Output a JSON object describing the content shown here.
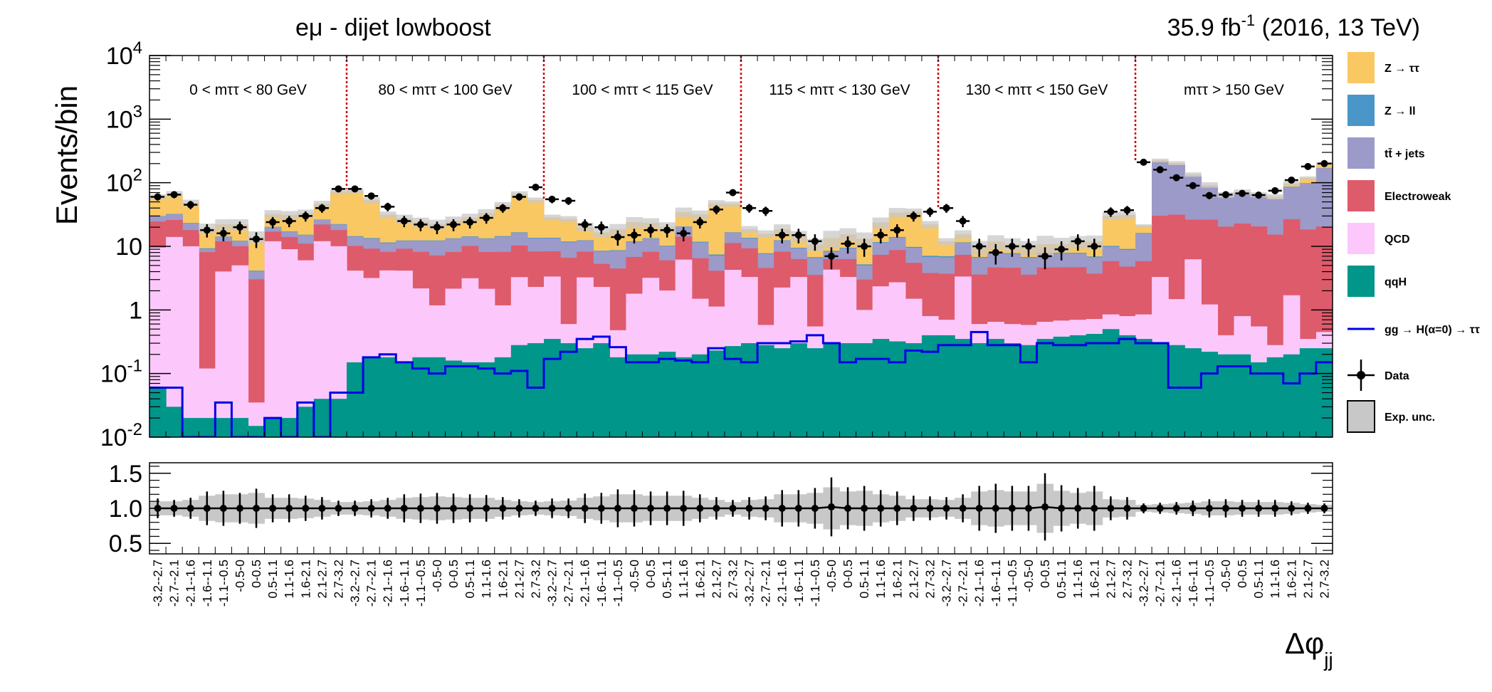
{
  "header": {
    "title": "eμ - dijet lowboost",
    "lumi_value": "35.9 fb",
    "lumi_exp": "-1",
    "lumi_rest": " (2016, 13 TeV)"
  },
  "colors": {
    "ztt": "#f9c863",
    "zll": "#4a96c8",
    "ttbar": "#9c9ac9",
    "ewk": "#de5b6b",
    "qcd": "#fcc8fc",
    "qqh": "#00968a",
    "signal": "#0000e6",
    "data": "#000000",
    "unc": "#c8c8c8",
    "divider": "#cc0000"
  },
  "chart_data": [
    {
      "type": "bar",
      "stacked": true,
      "title": "eμ - dijet lowboost",
      "ylabel": "Events/bin",
      "xlabel": "Δφjj",
      "yscale": "log",
      "ylim": [
        0.01,
        10000
      ],
      "y_ticks": [
        "10^-2",
        "10^-1",
        "1",
        "10",
        "10^2",
        "10^3",
        "10^4"
      ],
      "legend_position": "right",
      "regions": [
        {
          "label": "0 < mττ < 80 GeV"
        },
        {
          "label": "80 < mττ < 100 GeV"
        },
        {
          "label": "100 < mττ < 115 GeV"
        },
        {
          "label": "115 < mττ < 130 GeV"
        },
        {
          "label": "130 < mττ < 150 GeV"
        },
        {
          "label": "mττ > 150 GeV"
        }
      ],
      "categories": [
        "-3.2--2.7",
        "-2.7--2.1",
        "-2.1--1.6",
        "-1.6--1.1",
        "-1.1--0.5",
        "-0.5-0",
        "0-0.5",
        "0.5-1.1",
        "1.1-1.6",
        "1.6-2.1",
        "2.1-2.7",
        "2.7-3.2",
        "-3.2--2.7",
        "-2.7--2.1",
        "-2.1--1.6",
        "-1.6--1.1",
        "-1.1--0.5",
        "-0.5-0",
        "0-0.5",
        "0.5-1.1",
        "1.1-1.6",
        "1.6-2.1",
        "2.1-2.7",
        "2.7-3.2",
        "-3.2--2.7",
        "-2.7--2.1",
        "-2.1--1.6",
        "-1.6--1.1",
        "-1.1--0.5",
        "-0.5-0",
        "0-0.5",
        "0.5-1.1",
        "1.1-1.6",
        "1.6-2.1",
        "2.1-2.7",
        "2.7-3.2",
        "-3.2--2.7",
        "-2.7--2.1",
        "-2.1--1.6",
        "-1.6--1.1",
        "-1.1--0.5",
        "-0.5-0",
        "0-0.5",
        "0.5-1.1",
        "1.1-1.6",
        "1.6-2.1",
        "2.1-2.7",
        "2.7-3.2",
        "-3.2--2.7",
        "-2.7--2.1",
        "-2.1--1.6",
        "-1.6--1.1",
        "-1.1--0.5",
        "-0.5-0",
        "0-0.5",
        "0.5-1.1",
        "1.1-1.6",
        "1.6-2.1",
        "2.1-2.7",
        "2.7-3.2",
        "-3.2--2.7",
        "-2.7--2.1",
        "-2.1--1.6",
        "-1.6--1.1",
        "-1.1--0.5",
        "-0.5-0",
        "0-0.5",
        "0.5-1.1",
        "1.1-1.6",
        "1.6-2.1",
        "2.1-2.7",
        "2.7-3.2"
      ],
      "series": [
        {
          "name": "qqH",
          "key": "qqh",
          "values": [
            0.06,
            0.03,
            0.02,
            0.02,
            0.02,
            0.02,
            0.015,
            0.02,
            0.02,
            0.03,
            0.04,
            0.04,
            0.15,
            0.18,
            0.18,
            0.15,
            0.18,
            0.18,
            0.16,
            0.15,
            0.15,
            0.18,
            0.28,
            0.3,
            0.35,
            0.3,
            0.25,
            0.3,
            0.18,
            0.2,
            0.2,
            0.22,
            0.18,
            0.2,
            0.23,
            0.27,
            0.3,
            0.28,
            0.25,
            0.3,
            0.25,
            0.3,
            0.3,
            0.3,
            0.35,
            0.32,
            0.3,
            0.4,
            0.4,
            0.35,
            0.3,
            0.35,
            0.3,
            0.28,
            0.35,
            0.38,
            0.4,
            0.42,
            0.5,
            0.4,
            0.35,
            0.3,
            0.28,
            0.25,
            0.22,
            0.2,
            0.2,
            0.15,
            0.18,
            0.2,
            0.25,
            0.25
          ]
        },
        {
          "name": "QCD",
          "key": "qcd",
          "values": [
            9.5,
            14,
            10,
            0.1,
            4,
            5,
            0.02,
            12,
            9,
            6,
            12,
            10,
            4,
            3,
            4,
            4,
            2,
            1,
            2,
            3,
            2,
            1,
            3,
            2,
            3,
            0.3,
            3,
            2,
            0.3,
            1.6,
            3,
            1.8,
            6,
            1.3,
            0.9,
            4,
            3,
            0.3,
            2,
            3,
            0.3,
            4,
            3,
            0.7,
            2,
            2.4,
            1.2,
            0.4,
            0.3,
            3,
            0.3,
            0.3,
            0.3,
            0.3,
            0.3,
            0.3,
            0.3,
            0.3,
            0.35,
            0.4,
            0.5,
            3,
            1.2,
            6,
            1,
            0.2,
            0.6,
            0.4,
            0.1,
            1.5,
            0.1,
            0.2
          ]
        },
        {
          "name": "Electroweak",
          "key": "ewk",
          "values": [
            15,
            12,
            8,
            8,
            8,
            5,
            3,
            5,
            5,
            5,
            10,
            8,
            6,
            6,
            4,
            5,
            6,
            6,
            6,
            7,
            6,
            7,
            7,
            6,
            5,
            6,
            5,
            3,
            4,
            5,
            5,
            4,
            8,
            5,
            3,
            7,
            6,
            4,
            6,
            3,
            3,
            2,
            3,
            2,
            5,
            6,
            4,
            3,
            3,
            4,
            3,
            4,
            4,
            3,
            4,
            4,
            4,
            3,
            5,
            4,
            5,
            27,
            30,
            20,
            25,
            20,
            22,
            20,
            15,
            25,
            18,
            20
          ]
        },
        {
          "name": "tt̄ + jets",
          "key": "ttbar",
          "values": [
            5,
            6,
            5,
            1,
            2,
            2,
            1,
            3,
            3,
            4,
            4,
            4,
            4,
            4,
            3,
            3,
            4,
            5,
            5,
            4,
            5,
            6,
            6,
            5,
            5,
            5,
            4,
            3,
            4,
            5,
            5,
            4,
            6,
            5,
            3,
            5,
            4,
            3,
            4,
            3,
            3,
            2,
            3,
            2,
            4,
            5,
            4,
            3,
            3,
            4,
            3,
            3,
            3,
            3,
            3,
            3,
            3,
            3,
            4,
            4,
            10,
            180,
            160,
            100,
            60,
            40,
            45,
            40,
            40,
            60,
            80,
            150
          ]
        },
        {
          "name": "Z → ll",
          "key": "zll",
          "values": [
            0.3,
            0.3,
            0.3,
            0.2,
            0.2,
            0.2,
            0.1,
            0.2,
            0.2,
            0.2,
            0.3,
            0.3,
            0.3,
            0.3,
            0.3,
            0.2,
            0.2,
            0.2,
            0.2,
            0.2,
            0.2,
            0.3,
            0.3,
            0.3,
            0.3,
            0.3,
            0.2,
            0.2,
            0.2,
            0.2,
            0.2,
            0.2,
            0.3,
            0.3,
            0.3,
            0.3,
            0.3,
            0.2,
            0.2,
            0.2,
            0.2,
            0.2,
            0.2,
            0.2,
            0.3,
            0.3,
            0.3,
            0.3,
            0.3,
            0.2,
            0.2,
            0.2,
            0.2,
            0.2,
            0.2,
            0.2,
            0.2,
            0.2,
            0.3,
            0.3,
            0.3,
            0.3,
            0.3,
            0.2,
            0.2,
            0.2,
            0.2,
            0.2,
            0.2,
            0.2,
            0.3,
            0.3
          ]
        },
        {
          "name": "Z → ττ",
          "key": "ztt",
          "values": [
            30,
            35,
            25,
            10,
            8,
            10,
            10,
            12,
            14,
            18,
            20,
            50,
            60,
            40,
            20,
            15,
            12,
            10,
            12,
            14,
            20,
            30,
            50,
            40,
            15,
            15,
            8,
            8,
            10,
            12,
            10,
            10,
            14,
            20,
            40,
            30,
            5,
            8,
            6,
            5,
            4,
            5,
            6,
            8,
            12,
            20,
            25,
            15,
            5,
            4,
            3,
            4,
            3,
            3,
            3,
            3,
            4,
            5,
            20,
            22,
            5,
            15,
            12,
            8,
            6,
            4,
            4,
            4,
            5,
            10,
            20,
            30
          ]
        },
        {
          "name": "gg → H(α=0) → ττ",
          "key": "signal",
          "style": "line",
          "values": [
            0.06,
            0.06,
            0.01,
            0.01,
            0.035,
            0.01,
            0.01,
            0.02,
            0.01,
            0.035,
            0.01,
            0.05,
            0.05,
            0.18,
            0.2,
            0.15,
            0.12,
            0.1,
            0.13,
            0.13,
            0.12,
            0.1,
            0.11,
            0.06,
            0.17,
            0.22,
            0.35,
            0.38,
            0.26,
            0.15,
            0.15,
            0.17,
            0.16,
            0.15,
            0.25,
            0.17,
            0.15,
            0.3,
            0.3,
            0.32,
            0.4,
            0.3,
            0.15,
            0.17,
            0.17,
            0.15,
            0.23,
            0.22,
            0.28,
            0.28,
            0.45,
            0.28,
            0.28,
            0.15,
            0.3,
            0.28,
            0.28,
            0.3,
            0.3,
            0.35,
            0.3,
            0.3,
            0.06,
            0.06,
            0.1,
            0.13,
            0.13,
            0.1,
            0.1,
            0.07,
            0.1,
            0.15
          ]
        },
        {
          "name": "Data",
          "key": "data",
          "style": "points",
          "values": [
            60,
            65,
            45,
            18,
            16,
            20,
            13,
            24,
            25,
            30,
            40,
            80,
            80,
            62,
            42,
            25,
            22,
            20,
            22,
            24,
            28,
            40,
            60,
            85,
            55,
            52,
            22,
            20,
            14,
            15,
            18,
            18,
            16,
            24,
            38,
            70,
            40,
            36,
            15,
            15,
            12,
            7,
            11,
            10,
            15,
            18,
            30,
            35,
            40,
            25,
            10,
            8,
            10,
            10,
            7,
            9,
            12,
            10,
            35,
            37,
            210,
            160,
            120,
            90,
            63,
            65,
            68,
            64,
            75,
            110,
            180,
            200
          ]
        },
        {
          "name": "Exp. unc.",
          "key": "unc",
          "style": "band"
        }
      ]
    },
    {
      "type": "scatter",
      "ylabel": "",
      "ylim": [
        0.35,
        1.65
      ],
      "y_ticks": [
        "0.5",
        "1.0",
        "1.5"
      ],
      "ratio_values": [
        1.0,
        1.0,
        1.0,
        1.0,
        1.0,
        1.0,
        1.0,
        1.0,
        1.0,
        1.0,
        1.0,
        1.0,
        1.0,
        1.0,
        1.0,
        1.0,
        1.0,
        1.0,
        1.0,
        1.0,
        1.0,
        1.0,
        1.0,
        1.0,
        1.0,
        1.0,
        1.0,
        1.0,
        1.0,
        1.0,
        1.0,
        1.0,
        1.0,
        1.0,
        1.0,
        1.0,
        1.0,
        1.0,
        1.0,
        1.0,
        1.0,
        1.02,
        1.0,
        1.0,
        1.0,
        1.0,
        1.0,
        1.0,
        1.0,
        1.0,
        1.0,
        1.0,
        1.0,
        1.0,
        1.02,
        1.0,
        1.0,
        1.0,
        1.0,
        1.0,
        1.0,
        1.0,
        1.0,
        1.0,
        1.0,
        1.0,
        1.0,
        1.0,
        1.0,
        1.0,
        1.0,
        1.0
      ],
      "ratio_errors": [
        0.14,
        0.12,
        0.15,
        0.24,
        0.25,
        0.22,
        0.28,
        0.2,
        0.2,
        0.18,
        0.16,
        0.11,
        0.11,
        0.13,
        0.15,
        0.2,
        0.21,
        0.22,
        0.21,
        0.2,
        0.19,
        0.16,
        0.13,
        0.11,
        0.14,
        0.14,
        0.21,
        0.22,
        0.27,
        0.26,
        0.24,
        0.24,
        0.25,
        0.2,
        0.16,
        0.12,
        0.16,
        0.17,
        0.26,
        0.26,
        0.29,
        0.42,
        0.3,
        0.32,
        0.26,
        0.24,
        0.18,
        0.17,
        0.16,
        0.2,
        0.32,
        0.35,
        0.32,
        0.32,
        0.48,
        0.33,
        0.29,
        0.32,
        0.17,
        0.16,
        0.07,
        0.08,
        0.09,
        0.11,
        0.13,
        0.13,
        0.12,
        0.12,
        0.12,
        0.1,
        0.08,
        0.07
      ],
      "unc_band": [
        0.1,
        0.1,
        0.12,
        0.18,
        0.2,
        0.2,
        0.22,
        0.15,
        0.15,
        0.14,
        0.12,
        0.09,
        0.09,
        0.1,
        0.12,
        0.15,
        0.16,
        0.17,
        0.16,
        0.15,
        0.15,
        0.12,
        0.1,
        0.09,
        0.1,
        0.11,
        0.15,
        0.17,
        0.2,
        0.2,
        0.18,
        0.18,
        0.18,
        0.15,
        0.12,
        0.09,
        0.12,
        0.13,
        0.2,
        0.2,
        0.22,
        0.3,
        0.24,
        0.25,
        0.2,
        0.18,
        0.13,
        0.13,
        0.12,
        0.15,
        0.24,
        0.26,
        0.24,
        0.24,
        0.35,
        0.25,
        0.22,
        0.24,
        0.13,
        0.12,
        0.05,
        0.06,
        0.07,
        0.08,
        0.1,
        0.1,
        0.09,
        0.09,
        0.09,
        0.08,
        0.06,
        0.05
      ]
    }
  ]
}
